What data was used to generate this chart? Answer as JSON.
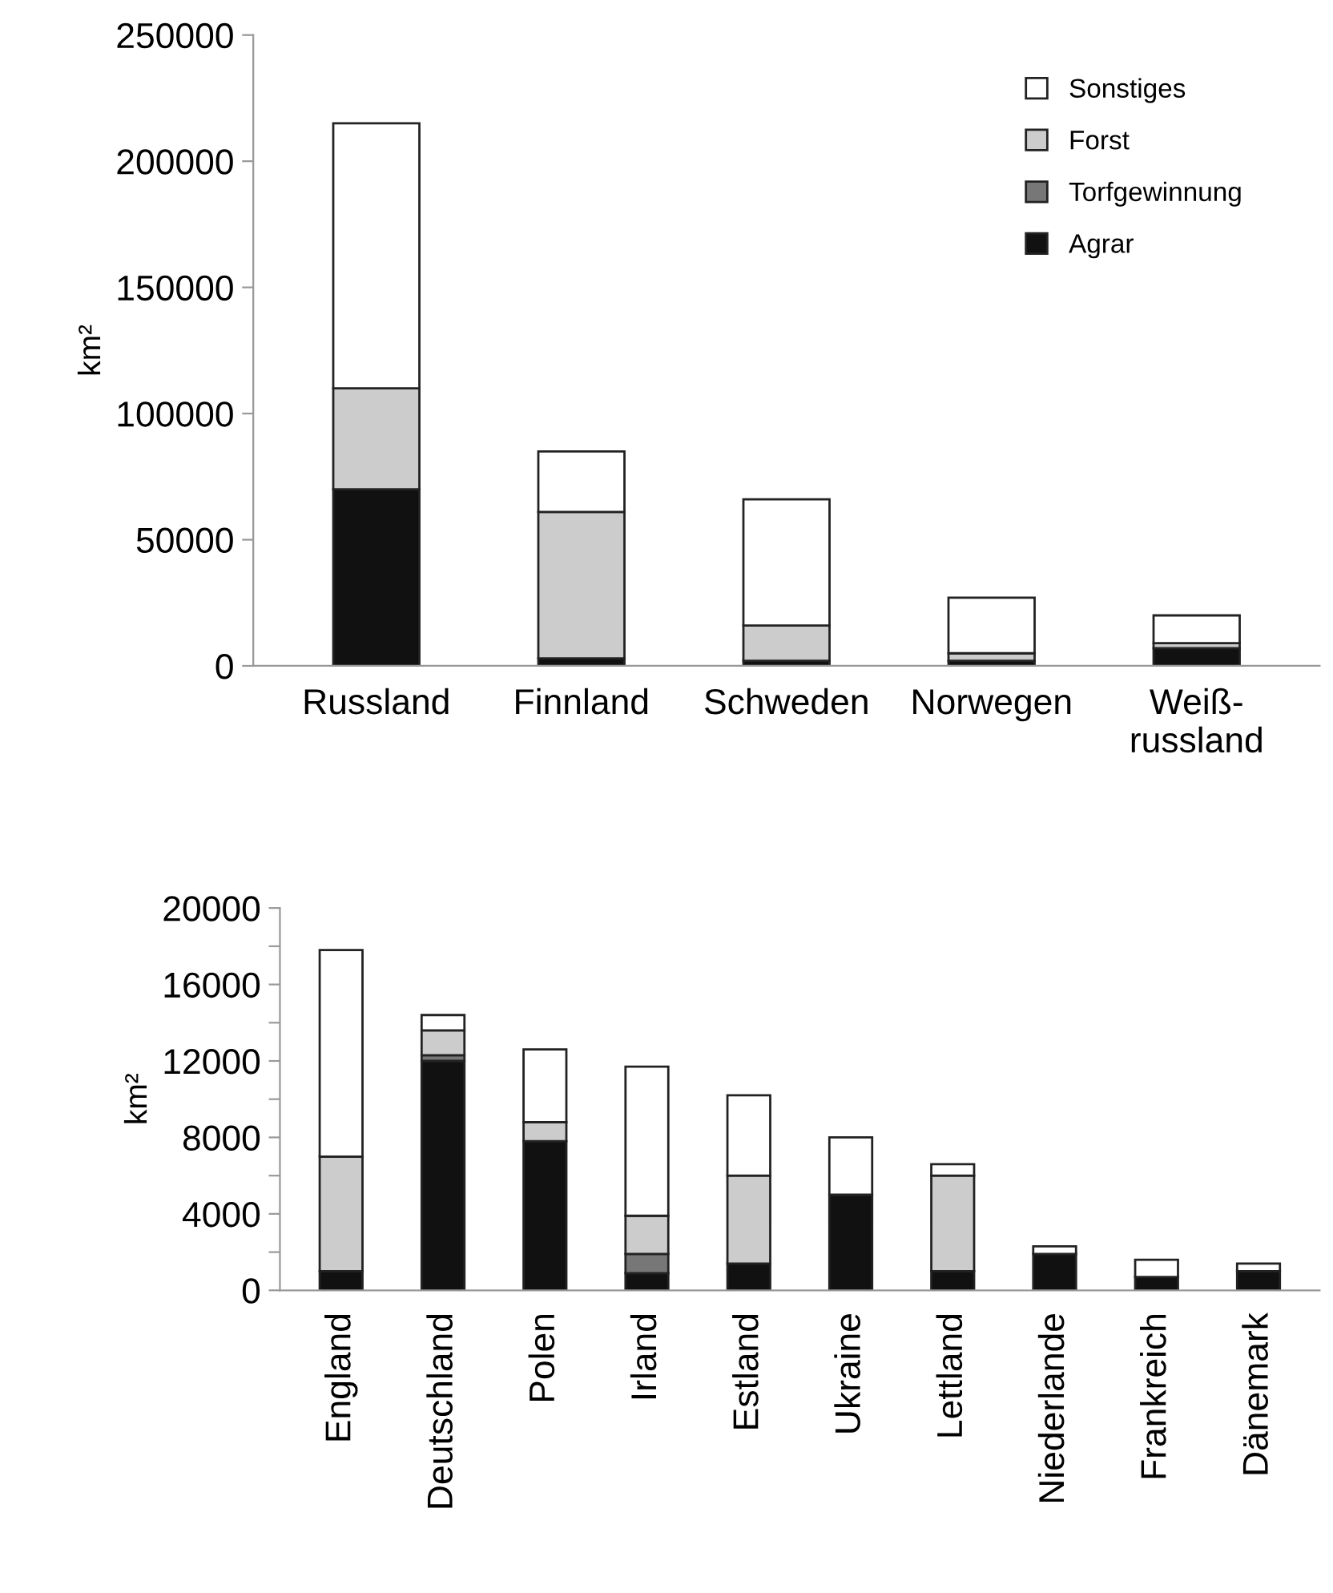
{
  "chart_data": [
    {
      "type": "bar",
      "stacked": true,
      "ylabel": "km²",
      "legend": "top right",
      "grid": false,
      "categories": [
        "Russland",
        "Finnland",
        "Schweden",
        "Norwegen",
        "Weiß-\nrussland"
      ],
      "ylim": [
        0,
        250000
      ],
      "yticks": [
        0,
        50000,
        100000,
        150000,
        200000,
        250000
      ],
      "series": [
        {
          "name": "Agrar",
          "color": "#111111",
          "values": [
            70000,
            3000,
            2000,
            2000,
            7000
          ]
        },
        {
          "name": "Torfgewinnung",
          "color": "#777777",
          "values": [
            null,
            null,
            null,
            null,
            null
          ]
        },
        {
          "name": "Forst",
          "color": "#cccccc",
          "values": [
            40000,
            58000,
            14000,
            3000,
            2000
          ]
        },
        {
          "name": "Sonstiges",
          "color": "#ffffff",
          "values": [
            105000,
            24000,
            50000,
            22000,
            11000
          ]
        }
      ]
    },
    {
      "type": "bar",
      "stacked": true,
      "ylabel": "km²",
      "grid": false,
      "categories": [
        "England",
        "Deutschland",
        "Polen",
        "Irland",
        "Estland",
        "Ukraine",
        "Lettland",
        "Niederlande",
        "Frankreich",
        "Dänemark"
      ],
      "ylim": [
        0,
        20000
      ],
      "yticks": [
        0,
        {
          "value": 2000,
          "label": null
        },
        4000,
        {
          "value": 6000,
          "label": null
        },
        8000,
        {
          "value": 10000,
          "label": null
        },
        12000,
        {
          "value": 14000,
          "label": null
        },
        16000,
        {
          "value": 18000,
          "label": null
        },
        20000
      ],
      "series": [
        {
          "color": "#111111",
          "values": [
            1000,
            12000,
            7800,
            900,
            1400,
            5000,
            1000,
            1900,
            700,
            1000
          ]
        },
        {
          "color": "#777777",
          "values": [
            null,
            300,
            null,
            1000,
            null,
            null,
            null,
            null,
            null,
            null
          ]
        },
        {
          "color": "#cccccc",
          "values": [
            6000,
            1300,
            1000,
            2000,
            4600,
            null,
            5000,
            null,
            null,
            null
          ]
        },
        {
          "color": "#ffffff",
          "values": [
            10800,
            800,
            3800,
            7800,
            4200,
            3000,
            600,
            400,
            900,
            400
          ]
        }
      ]
    }
  ]
}
